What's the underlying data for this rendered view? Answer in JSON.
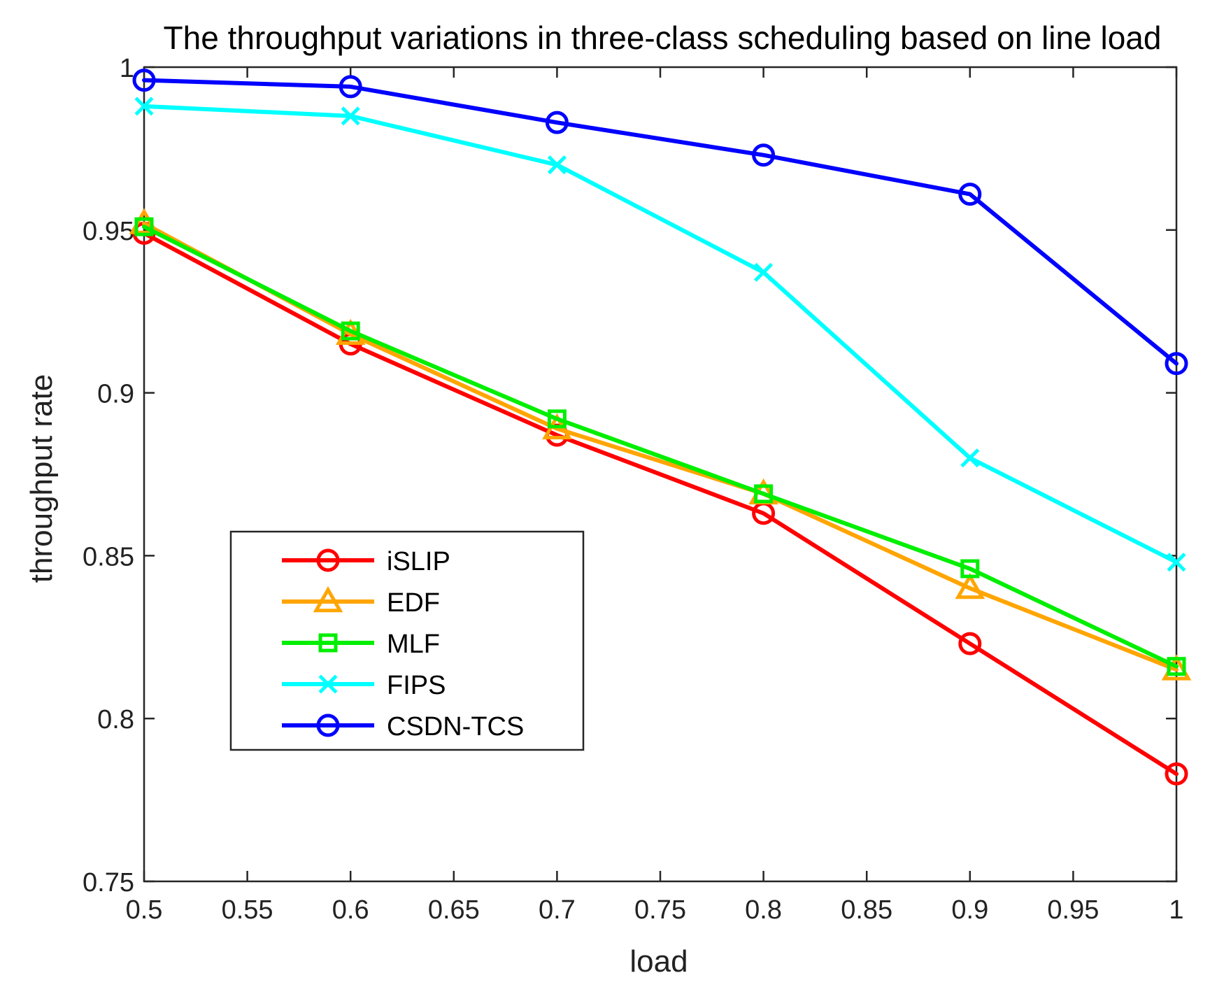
{
  "chart_data": {
    "type": "line",
    "title": "The throughput variations in three-class scheduling based on line load",
    "xlabel": "load",
    "ylabel": "throughput rate",
    "xlim": [
      0.5,
      1
    ],
    "ylim": [
      0.75,
      1
    ],
    "xticks": [
      0.5,
      0.55,
      0.6,
      0.65,
      0.7,
      0.75,
      0.8,
      0.85,
      0.9,
      0.95,
      1
    ],
    "xtick_labels": [
      "0.5",
      "0.55",
      "0.6",
      "0.65",
      "0.7",
      "0.75",
      "0.8",
      "0.85",
      "0.9",
      "0.95",
      "1"
    ],
    "yticks": [
      0.75,
      0.8,
      0.85,
      0.9,
      0.95,
      1
    ],
    "ytick_labels": [
      "0.75",
      "0.8",
      "0.85",
      "0.9",
      "0.95",
      "1"
    ],
    "grid": false,
    "legend_position": "center-left",
    "x": [
      0.5,
      0.6,
      0.7,
      0.8,
      0.9,
      1.0
    ],
    "series": [
      {
        "name": "iSLIP",
        "color": "#ff0000",
        "marker": "circle",
        "values": [
          0.949,
          0.915,
          0.887,
          0.863,
          0.823,
          0.783
        ]
      },
      {
        "name": "EDF",
        "color": "#ffa500",
        "marker": "triangle",
        "values": [
          0.952,
          0.918,
          0.889,
          0.869,
          0.84,
          0.815
        ]
      },
      {
        "name": "MLF",
        "color": "#00ee00",
        "marker": "square",
        "values": [
          0.951,
          0.919,
          0.892,
          0.869,
          0.846,
          0.816
        ]
      },
      {
        "name": "FIPS",
        "color": "#00ffff",
        "marker": "x",
        "values": [
          0.988,
          0.985,
          0.97,
          0.937,
          0.88,
          0.848
        ]
      },
      {
        "name": "CSDN-TCS",
        "color": "#0000ff",
        "marker": "circle",
        "values": [
          0.996,
          0.994,
          0.983,
          0.973,
          0.961,
          0.909
        ]
      }
    ]
  }
}
